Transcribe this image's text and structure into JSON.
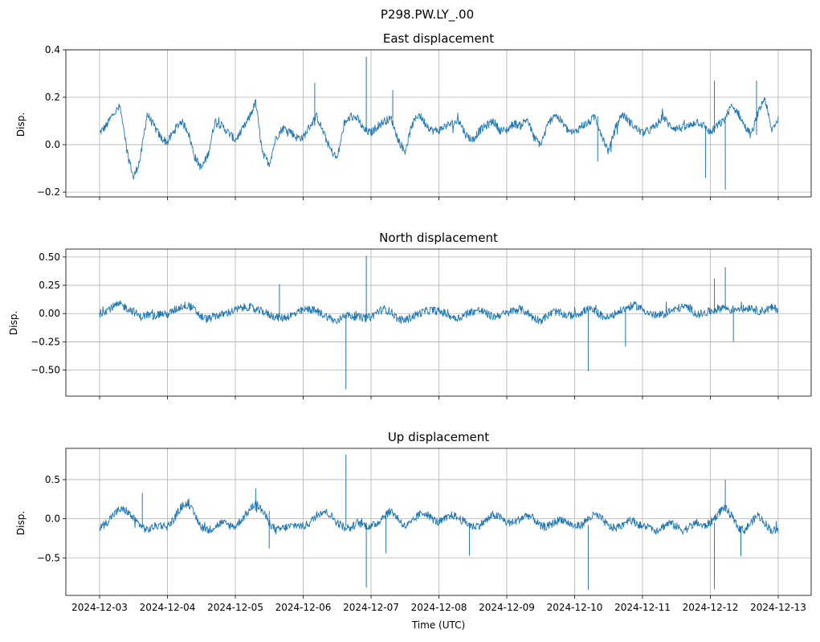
{
  "figure": {
    "suptitle": "P298.PW.LY_.00",
    "xlabel": "Time (UTC)",
    "line_color": "#1f77b4",
    "grid_color": "#b0b0b0",
    "x_tick_labels": [
      "2024-12-03",
      "2024-12-04",
      "2024-12-05",
      "2024-12-06",
      "2024-12-07",
      "2024-12-08",
      "2024-12-09",
      "2024-12-10",
      "2024-12-11",
      "2024-12-12",
      "2024-12-13"
    ]
  },
  "chart_data": [
    {
      "type": "line",
      "title": "East displacement",
      "ylabel": "Disp.",
      "x_range": [
        "2024-12-03",
        "2024-12-13"
      ],
      "ylim": [
        -0.22,
        0.4
      ],
      "y_ticks": [
        -0.2,
        0.0,
        0.2,
        0.4
      ],
      "y_tick_labels": [
        "−0.2",
        "0.0",
        "0.2",
        "0.4"
      ],
      "grid": true,
      "series": [
        {
          "x_days": [
            0,
            0.1,
            0.2,
            0.3,
            0.4,
            0.5,
            0.6,
            0.7,
            0.8,
            0.9,
            1.0,
            1.1,
            1.2,
            1.3,
            1.4,
            1.5,
            1.6,
            1.7,
            1.8,
            1.9,
            2.0,
            2.1,
            2.2,
            2.3,
            2.4,
            2.5,
            2.6,
            2.7,
            2.8,
            2.9,
            3.0,
            3.1,
            3.2,
            3.3,
            3.4,
            3.5,
            3.6,
            3.7,
            3.8,
            3.9,
            4.0,
            4.1,
            4.2,
            4.3,
            4.4,
            4.5,
            4.6,
            4.7,
            4.8,
            4.9,
            5.0,
            5.1,
            5.2,
            5.3,
            5.4,
            5.5,
            5.6,
            5.7,
            5.8,
            5.9,
            6.0,
            6.1,
            6.2,
            6.3,
            6.4,
            6.5,
            6.6,
            6.7,
            6.8,
            6.9,
            7.0,
            7.1,
            7.2,
            7.3,
            7.4,
            7.5,
            7.6,
            7.7,
            7.8,
            7.9,
            8.0,
            8.1,
            8.2,
            8.3,
            8.4,
            8.5,
            8.6,
            8.7,
            8.8,
            8.9,
            9.0,
            9.1,
            9.2,
            9.3,
            9.4,
            9.5,
            9.6,
            9.7,
            9.8,
            9.9,
            10.0
          ],
          "values": [
            0.05,
            0.08,
            0.13,
            0.16,
            -0.02,
            -0.14,
            -0.06,
            0.13,
            0.08,
            0.03,
            0.01,
            0.06,
            0.1,
            0.06,
            -0.05,
            -0.1,
            -0.04,
            0.1,
            0.08,
            0.05,
            0.02,
            0.06,
            0.11,
            0.18,
            -0.04,
            -0.08,
            0.03,
            0.07,
            0.06,
            0.03,
            0.03,
            0.08,
            0.12,
            0.05,
            -0.02,
            -0.06,
            0.08,
            0.12,
            0.11,
            0.06,
            0.05,
            0.08,
            0.1,
            0.11,
            0.02,
            -0.03,
            0.08,
            0.13,
            0.09,
            0.06,
            0.06,
            0.08,
            0.09,
            0.1,
            0.04,
            0.02,
            0.06,
            0.08,
            0.1,
            0.06,
            0.06,
            0.09,
            0.08,
            0.11,
            0.03,
            0.0,
            0.08,
            0.13,
            0.1,
            0.06,
            0.05,
            0.08,
            0.09,
            0.12,
            0.04,
            -0.03,
            0.07,
            0.13,
            0.1,
            0.07,
            0.05,
            0.06,
            0.08,
            0.12,
            0.08,
            0.07,
            0.07,
            0.08,
            0.1,
            0.08,
            0.05,
            0.08,
            0.1,
            0.16,
            0.14,
            0.08,
            0.04,
            0.13,
            0.2,
            0.06,
            0.11
          ]
        }
      ],
      "spikes": [
        {
          "x_days": 3.17,
          "value": 0.26
        },
        {
          "x_days": 3.93,
          "value": 0.37
        },
        {
          "x_days": 4.32,
          "value": 0.23
        },
        {
          "x_days": 7.34,
          "value": -0.07
        },
        {
          "x_days": 8.93,
          "value": -0.14
        },
        {
          "x_days": 9.06,
          "value": 0.27
        },
        {
          "x_days": 9.22,
          "value": -0.19
        },
        {
          "x_days": 9.68,
          "value": 0.27
        }
      ]
    },
    {
      "type": "line",
      "title": "North displacement",
      "ylabel": "Disp.",
      "x_range": [
        "2024-12-03",
        "2024-12-13"
      ],
      "ylim": [
        -0.73,
        0.57
      ],
      "y_ticks": [
        -0.5,
        -0.25,
        0.0,
        0.25,
        0.5
      ],
      "y_tick_labels": [
        "−0.50",
        "−0.25",
        "0.00",
        "0.25",
        "0.50"
      ],
      "grid": true,
      "series": [
        {
          "x_days": [
            0,
            0.1,
            0.2,
            0.3,
            0.4,
            0.5,
            0.6,
            0.7,
            0.8,
            0.9,
            1.0,
            1.1,
            1.2,
            1.3,
            1.4,
            1.5,
            1.6,
            1.7,
            1.8,
            1.9,
            2.0,
            2.1,
            2.2,
            2.3,
            2.4,
            2.5,
            2.6,
            2.7,
            2.8,
            2.9,
            3.0,
            3.1,
            3.2,
            3.3,
            3.4,
            3.5,
            3.6,
            3.7,
            3.8,
            3.9,
            4.0,
            4.1,
            4.2,
            4.3,
            4.4,
            4.5,
            4.6,
            4.7,
            4.8,
            4.9,
            5.0,
            5.1,
            5.2,
            5.3,
            5.4,
            5.5,
            5.6,
            5.7,
            5.8,
            5.9,
            6.0,
            6.1,
            6.2,
            6.3,
            6.4,
            6.5,
            6.6,
            6.7,
            6.8,
            6.9,
            7.0,
            7.1,
            7.2,
            7.3,
            7.4,
            7.5,
            7.6,
            7.7,
            7.8,
            7.9,
            8.0,
            8.1,
            8.2,
            8.3,
            8.4,
            8.5,
            8.6,
            8.7,
            8.8,
            8.9,
            9.0,
            9.1,
            9.2,
            9.3,
            9.4,
            9.5,
            9.6,
            9.7,
            9.8,
            9.9,
            10.0
          ],
          "values": [
            0.0,
            0.03,
            0.06,
            0.08,
            0.05,
            0.02,
            -0.03,
            -0.01,
            -0.02,
            0.0,
            -0.01,
            0.03,
            0.06,
            0.08,
            0.03,
            -0.03,
            -0.05,
            -0.02,
            -0.01,
            0.01,
            0.03,
            0.05,
            0.06,
            0.03,
            0.02,
            -0.01,
            -0.03,
            -0.04,
            -0.02,
            0.0,
            0.03,
            0.04,
            0.02,
            -0.01,
            -0.04,
            -0.08,
            -0.01,
            -0.02,
            -0.03,
            -0.04,
            -0.03,
            0.02,
            0.04,
            0.01,
            -0.05,
            -0.06,
            -0.03,
            0.0,
            0.02,
            0.03,
            0.02,
            0.0,
            -0.03,
            -0.04,
            0.0,
            0.02,
            0.03,
            0.0,
            -0.03,
            -0.01,
            0.0,
            0.03,
            0.04,
            0.01,
            -0.04,
            -0.06,
            -0.02,
            0.02,
            0.0,
            -0.02,
            -0.01,
            0.01,
            0.04,
            0.02,
            -0.02,
            -0.04,
            0.0,
            0.03,
            0.06,
            0.07,
            0.04,
            0.0,
            -0.02,
            -0.01,
            0.02,
            0.04,
            0.06,
            0.05,
            -0.01,
            0.0,
            0.02,
            0.04,
            0.06,
            0.03,
            0.05,
            0.04,
            0.06,
            0.02,
            0.03,
            0.05,
            0.04
          ]
        }
      ],
      "spikes": [
        {
          "x_days": 2.65,
          "value": 0.26
        },
        {
          "x_days": 3.63,
          "value": -0.67
        },
        {
          "x_days": 3.93,
          "value": 0.51
        },
        {
          "x_days": 7.2,
          "value": -0.51
        },
        {
          "x_days": 7.75,
          "value": -0.29
        },
        {
          "x_days": 9.06,
          "value": 0.31
        },
        {
          "x_days": 9.22,
          "value": 0.41
        },
        {
          "x_days": 9.34,
          "value": -0.25
        }
      ]
    },
    {
      "type": "line",
      "title": "Up displacement",
      "ylabel": "Disp.",
      "x_range": [
        "2024-12-03",
        "2024-12-13"
      ],
      "ylim": [
        -0.98,
        0.9
      ],
      "y_ticks": [
        -0.5,
        0.0,
        0.5
      ],
      "y_tick_labels": [
        "−0.5",
        "0.0",
        "0.5"
      ],
      "grid": true,
      "series": [
        {
          "x_days": [
            0,
            0.1,
            0.2,
            0.3,
            0.4,
            0.5,
            0.6,
            0.7,
            0.8,
            0.9,
            1.0,
            1.1,
            1.2,
            1.3,
            1.4,
            1.5,
            1.6,
            1.7,
            1.8,
            1.9,
            2.0,
            2.1,
            2.2,
            2.3,
            2.4,
            2.5,
            2.6,
            2.7,
            2.8,
            2.9,
            3.0,
            3.1,
            3.2,
            3.3,
            3.4,
            3.5,
            3.6,
            3.7,
            3.8,
            3.9,
            4.0,
            4.1,
            4.2,
            4.3,
            4.4,
            4.5,
            4.6,
            4.7,
            4.8,
            4.9,
            5.0,
            5.1,
            5.2,
            5.3,
            5.4,
            5.5,
            5.6,
            5.7,
            5.8,
            5.9,
            6.0,
            6.1,
            6.2,
            6.3,
            6.4,
            6.5,
            6.6,
            6.7,
            6.8,
            6.9,
            7.0,
            7.1,
            7.2,
            7.3,
            7.4,
            7.5,
            7.6,
            7.7,
            7.8,
            7.9,
            8.0,
            8.1,
            8.2,
            8.3,
            8.4,
            8.5,
            8.6,
            8.7,
            8.8,
            8.9,
            9.0,
            9.1,
            9.2,
            9.3,
            9.4,
            9.5,
            9.6,
            9.7,
            9.8,
            9.9,
            10.0
          ],
          "values": [
            -0.12,
            -0.05,
            0.05,
            0.12,
            0.1,
            0.0,
            -0.08,
            -0.15,
            -0.1,
            -0.08,
            -0.1,
            0.0,
            0.15,
            0.2,
            0.05,
            -0.1,
            -0.15,
            -0.1,
            -0.05,
            -0.08,
            -0.1,
            0.0,
            0.1,
            0.2,
            0.1,
            -0.05,
            -0.15,
            -0.12,
            -0.1,
            -0.08,
            -0.1,
            -0.05,
            0.05,
            0.1,
            0.05,
            -0.05,
            -0.1,
            -0.12,
            -0.05,
            -0.08,
            -0.1,
            -0.05,
            0.05,
            0.1,
            0.0,
            -0.1,
            -0.05,
            0.05,
            0.08,
            0.0,
            -0.05,
            0.0,
            0.05,
            0.0,
            -0.05,
            -0.1,
            -0.08,
            -0.02,
            0.05,
            0.02,
            -0.05,
            -0.05,
            0.0,
            0.05,
            0.0,
            -0.1,
            -0.1,
            -0.05,
            0.0,
            -0.05,
            -0.1,
            -0.08,
            0.0,
            0.05,
            0.0,
            -0.1,
            -0.12,
            -0.08,
            0.0,
            -0.05,
            -0.1,
            -0.1,
            -0.15,
            -0.1,
            -0.05,
            -0.1,
            -0.15,
            -0.1,
            -0.05,
            -0.1,
            -0.05,
            0.05,
            0.15,
            0.05,
            -0.1,
            -0.15,
            -0.05,
            0.05,
            -0.05,
            -0.15,
            -0.15
          ]
        }
      ],
      "spikes": [
        {
          "x_days": 0.63,
          "value": 0.33
        },
        {
          "x_days": 2.3,
          "value": 0.39
        },
        {
          "x_days": 2.5,
          "value": -0.38
        },
        {
          "x_days": 3.63,
          "value": 0.82
        },
        {
          "x_days": 3.93,
          "value": -0.88
        },
        {
          "x_days": 4.22,
          "value": -0.44
        },
        {
          "x_days": 5.45,
          "value": -0.47
        },
        {
          "x_days": 7.2,
          "value": -0.91
        },
        {
          "x_days": 9.06,
          "value": -0.9
        },
        {
          "x_days": 9.22,
          "value": 0.5
        },
        {
          "x_days": 9.45,
          "value": -0.48
        }
      ]
    }
  ]
}
